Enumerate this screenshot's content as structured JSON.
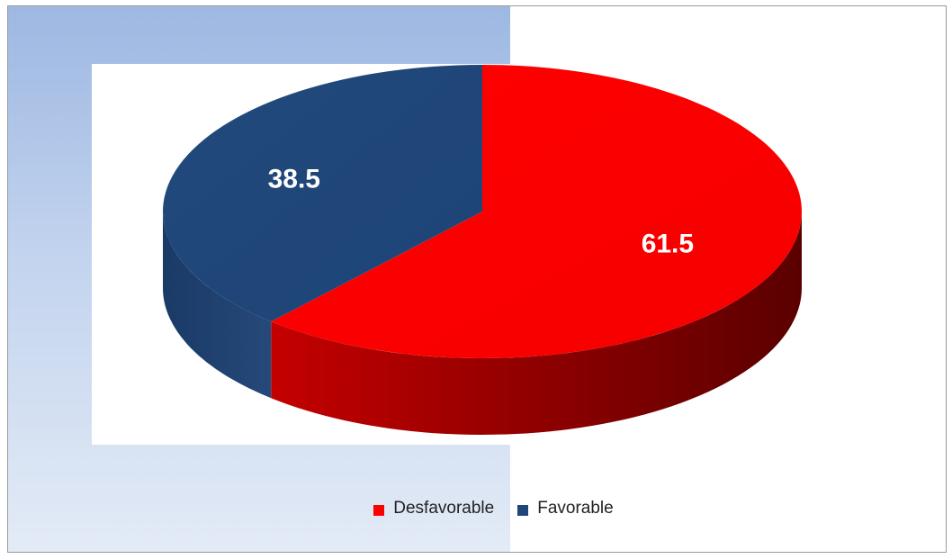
{
  "chart_data": {
    "type": "pie",
    "style": "3d",
    "categories": [
      "Desfavorable",
      "Favorable"
    ],
    "values": [
      61.5,
      38.5
    ],
    "data_labels": [
      "61.5",
      "38.5"
    ],
    "colors": [
      "#ff0000",
      "#1f4679"
    ],
    "title": "",
    "legend": {
      "position": "bottom",
      "entries": [
        "Desfavorable",
        "Favorable"
      ]
    }
  }
}
